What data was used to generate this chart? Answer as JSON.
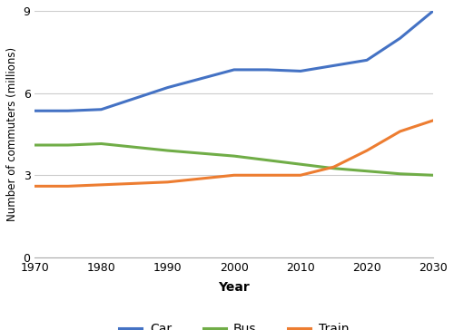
{
  "years": [
    1970,
    1975,
    1980,
    1990,
    2000,
    2005,
    2010,
    2015,
    2020,
    2025,
    2030
  ],
  "car": [
    5.35,
    5.35,
    5.4,
    6.2,
    6.85,
    6.85,
    6.8,
    7.0,
    7.2,
    8.0,
    9.0
  ],
  "bus": [
    4.1,
    4.1,
    4.15,
    3.9,
    3.7,
    3.55,
    3.4,
    3.25,
    3.15,
    3.05,
    3.0
  ],
  "train": [
    2.6,
    2.6,
    2.65,
    2.75,
    3.0,
    3.0,
    3.0,
    3.3,
    3.9,
    4.6,
    5.0
  ],
  "car_color": "#4472C4",
  "bus_color": "#70AD47",
  "train_color": "#ED7D31",
  "xlabel": "Year",
  "ylabel": "Number of commuters (millions)",
  "ylim": [
    0,
    9
  ],
  "xlim": [
    1970,
    2030
  ],
  "yticks": [
    0,
    3,
    6,
    9
  ],
  "xticks": [
    1970,
    1980,
    1990,
    2000,
    2010,
    2020,
    2030
  ],
  "legend_labels": [
    "Car",
    "Bus",
    "Train"
  ],
  "background_color": "#ffffff",
  "grid_color": "#cccccc",
  "linewidth": 2.2
}
